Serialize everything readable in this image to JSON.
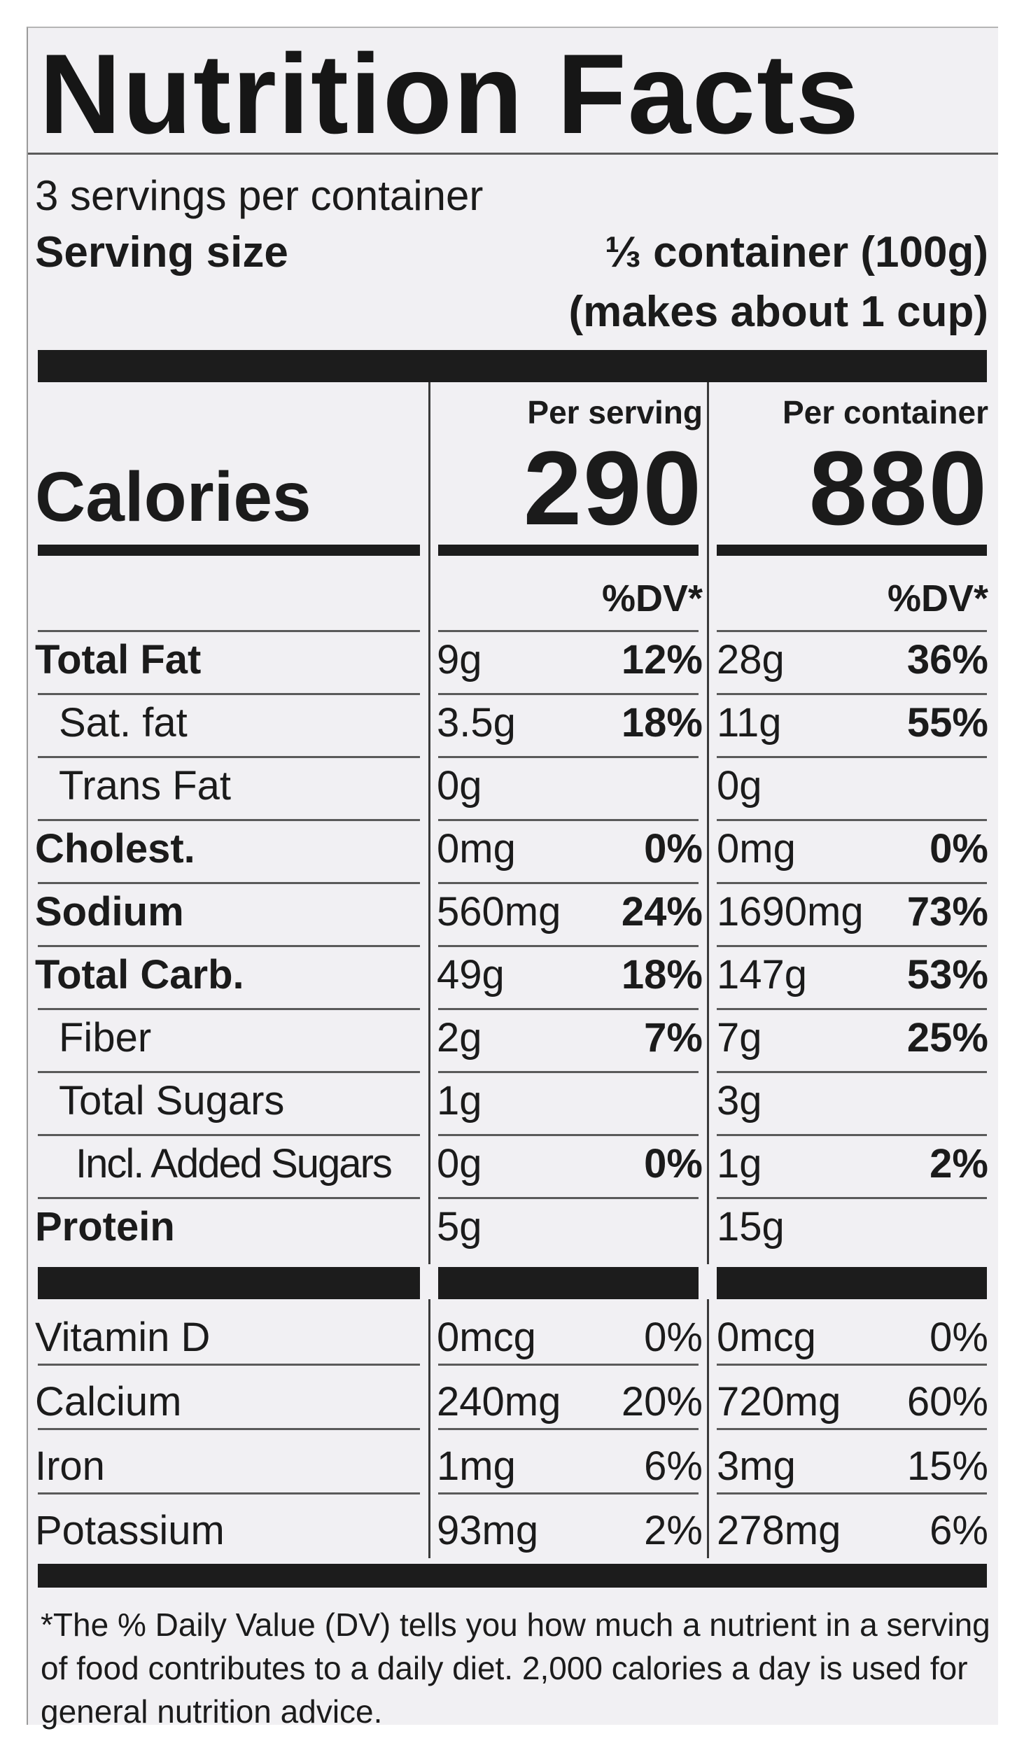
{
  "title": "Nutrition Facts",
  "servings_per_container": "3 servings per container",
  "serving_size": {
    "label": "Serving size",
    "value": "⅓ container (100g)",
    "value_line2": "(makes about 1 cup)"
  },
  "columns": {
    "per_serving_header": "Per serving",
    "per_container_header": "Per container",
    "dv_header": "%DV*"
  },
  "calories": {
    "label": "Calories",
    "per_serving": "290",
    "per_container": "880"
  },
  "nutrients": [
    {
      "name": "Total Fat",
      "bold": true,
      "indent": 0,
      "s_amt": "9g",
      "s_dv": "12%",
      "c_amt": "28g",
      "c_dv": "36%"
    },
    {
      "name": "Sat. fat",
      "bold": false,
      "indent": 1,
      "s_amt": "3.5g",
      "s_dv": "18%",
      "c_amt": "11g",
      "c_dv": "55%"
    },
    {
      "name": "Trans Fat",
      "bold": false,
      "indent": 1,
      "s_amt": "0g",
      "s_dv": "",
      "c_amt": "0g",
      "c_dv": ""
    },
    {
      "name": "Cholest.",
      "bold": true,
      "indent": 0,
      "s_amt": "0mg",
      "s_dv": "0%",
      "c_amt": "0mg",
      "c_dv": "0%"
    },
    {
      "name": "Sodium",
      "bold": true,
      "indent": 0,
      "s_amt": "560mg",
      "s_dv": "24%",
      "c_amt": "1690mg",
      "c_dv": "73%"
    },
    {
      "name": "Total Carb.",
      "bold": true,
      "indent": 0,
      "s_amt": "49g",
      "s_dv": "18%",
      "c_amt": "147g",
      "c_dv": "53%"
    },
    {
      "name": "Fiber",
      "bold": false,
      "indent": 1,
      "s_amt": "2g",
      "s_dv": "7%",
      "c_amt": "7g",
      "c_dv": "25%"
    },
    {
      "name": "Total Sugars",
      "bold": false,
      "indent": 1,
      "s_amt": "1g",
      "s_dv": "",
      "c_amt": "3g",
      "c_dv": ""
    },
    {
      "name": "Incl. Added Sugars",
      "bold": false,
      "indent": 2,
      "s_amt": "0g",
      "s_dv": "0%",
      "c_amt": "1g",
      "c_dv": "2%"
    },
    {
      "name": "Protein",
      "bold": true,
      "indent": 0,
      "s_amt": "5g",
      "s_dv": "",
      "c_amt": "15g",
      "c_dv": ""
    }
  ],
  "vitamins": [
    {
      "name": "Vitamin D",
      "s_amt": "0mcg",
      "s_dv": "0%",
      "c_amt": "0mcg",
      "c_dv": "0%"
    },
    {
      "name": "Calcium",
      "s_amt": "240mg",
      "s_dv": "20%",
      "c_amt": "720mg",
      "c_dv": "60%"
    },
    {
      "name": "Iron",
      "s_amt": "1mg",
      "s_dv": "6%",
      "c_amt": "3mg",
      "c_dv": "15%"
    },
    {
      "name": "Potassium",
      "s_amt": "93mg",
      "s_dv": "2%",
      "c_amt": "278mg",
      "c_dv": "6%"
    }
  ],
  "footnote": "*The % Daily Value (DV) tells you how much a nutrient in a serving of food contributes to a daily diet. 2,000 calories a day is used for general nutrition advice."
}
